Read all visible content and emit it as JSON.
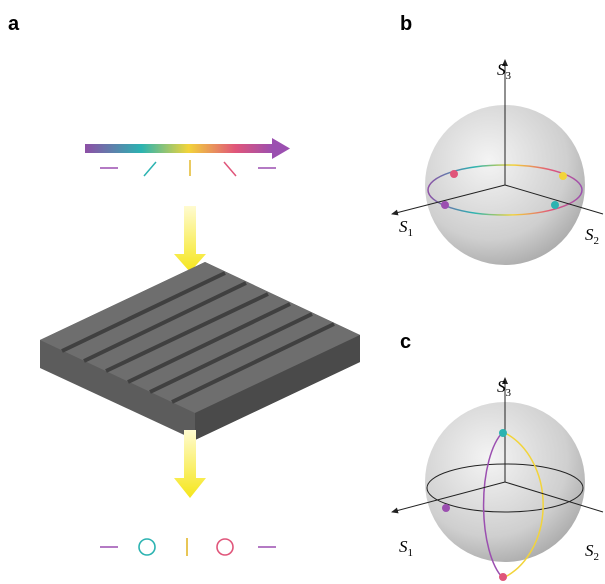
{
  "panels": [
    {
      "label": "a"
    },
    {
      "label": "b",
      "axes": [
        {
          "symbol": "S",
          "index": "3"
        },
        {
          "symbol": "S",
          "index": "1"
        },
        {
          "symbol": "S",
          "index": "2"
        }
      ]
    },
    {
      "label": "c",
      "axes": [
        {
          "symbol": "S",
          "index": "3"
        },
        {
          "symbol": "S",
          "index": "1"
        },
        {
          "symbol": "S",
          "index": "2"
        }
      ]
    }
  ]
}
